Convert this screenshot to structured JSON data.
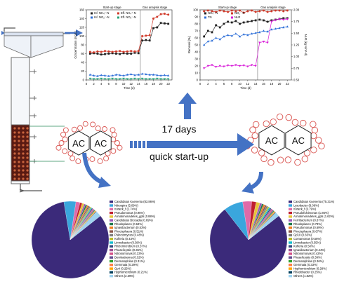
{
  "center": {
    "duration": "17 days",
    "caption": "quick start-up"
  },
  "ac_label": "AC",
  "colors": {
    "arrow": "#4472c4",
    "sludge": "#8b2d1f",
    "purple": "#3b2a7a",
    "pie_blue": "#3aa6dd",
    "bubble": "#d9534f"
  },
  "chart_left": {
    "type": "line",
    "stage_labels": [
      "Start-up stage",
      "Gas analysis stage"
    ],
    "ylabel": "Concentration (mg/L)",
    "xlabel": "Time (d)",
    "ylim": [
      0,
      160
    ],
    "yticks": [
      "0",
      "20",
      "40",
      "60",
      "80",
      "100",
      "120",
      "140",
      "160"
    ],
    "xticks": [
      "0",
      "2",
      "4",
      "6",
      "8",
      "10",
      "12",
      "14",
      "16",
      "18",
      "20",
      "22"
    ],
    "legend": [
      "Inf. NH₄⁺-N",
      "Eff. NH₄⁺-N",
      "Inf. NO₂⁻-N",
      "Eff. NO₂⁻-N"
    ],
    "series": [
      {
        "name": "Inf. NH₄⁺-N",
        "color": "#222222",
        "values": [
          [
            1,
            60
          ],
          [
            2,
            61
          ],
          [
            3,
            60
          ],
          [
            4,
            58
          ],
          [
            5,
            59
          ],
          [
            6,
            60
          ],
          [
            7,
            61
          ],
          [
            8,
            60
          ],
          [
            9,
            59
          ],
          [
            10,
            61
          ],
          [
            11,
            60
          ],
          [
            12,
            60
          ],
          [
            13,
            62
          ],
          [
            14,
            61
          ],
          [
            15,
            90
          ],
          [
            16,
            91
          ],
          [
            17,
            90
          ],
          [
            18,
            118
          ],
          [
            19,
            120
          ],
          [
            20,
            130
          ],
          [
            21,
            129
          ],
          [
            22,
            128
          ]
        ]
      },
      {
        "name": "Inf. NO₂⁻-N",
        "color": "#d03a2a",
        "values": [
          [
            1,
            64
          ],
          [
            2,
            63
          ],
          [
            3,
            65
          ],
          [
            4,
            64
          ],
          [
            5,
            66
          ],
          [
            6,
            65
          ],
          [
            7,
            64
          ],
          [
            8,
            65
          ],
          [
            9,
            66
          ],
          [
            10,
            64
          ],
          [
            11,
            65
          ],
          [
            12,
            66
          ],
          [
            13,
            65
          ],
          [
            14,
            66
          ],
          [
            15,
            100
          ],
          [
            16,
            101
          ],
          [
            17,
            102
          ],
          [
            18,
            140
          ],
          [
            19,
            144
          ],
          [
            20,
            150
          ],
          [
            21,
            151
          ],
          [
            22,
            149
          ]
        ]
      },
      {
        "name": "Eff. NH₄⁺-N",
        "color": "#2e6fd8",
        "values": [
          [
            1,
            12
          ],
          [
            2,
            10
          ],
          [
            3,
            9
          ],
          [
            4,
            11
          ],
          [
            5,
            10
          ],
          [
            6,
            9
          ],
          [
            7,
            10
          ],
          [
            8,
            12
          ],
          [
            9,
            11
          ],
          [
            10,
            10
          ],
          [
            11,
            12
          ],
          [
            12,
            13
          ],
          [
            13,
            11
          ],
          [
            14,
            12
          ],
          [
            15,
            14
          ],
          [
            16,
            13
          ],
          [
            17,
            12
          ],
          [
            18,
            12
          ],
          [
            19,
            11
          ],
          [
            20,
            10
          ],
          [
            21,
            11
          ],
          [
            22,
            10
          ]
        ]
      },
      {
        "name": "Eff. NO₂⁻-N",
        "color": "#2aa37a",
        "values": [
          [
            1,
            3
          ],
          [
            2,
            2
          ],
          [
            3,
            2
          ],
          [
            4,
            3
          ],
          [
            5,
            2
          ],
          [
            6,
            2
          ],
          [
            7,
            3
          ],
          [
            8,
            2
          ],
          [
            9,
            2
          ],
          [
            10,
            3
          ],
          [
            11,
            2
          ],
          [
            12,
            2
          ],
          [
            13,
            3
          ],
          [
            14,
            2
          ],
          [
            15,
            3
          ],
          [
            16,
            2
          ],
          [
            17,
            2
          ],
          [
            18,
            2
          ],
          [
            19,
            3
          ],
          [
            20,
            2
          ],
          [
            21,
            2
          ],
          [
            22,
            2
          ]
        ]
      }
    ]
  },
  "chart_right": {
    "type": "line",
    "stage_labels": [
      "Start-up stage",
      "Gas analysis stage"
    ],
    "ylabel": "Removal (%)",
    "y2label": "NLR (kg N/m³·d)",
    "xlabel": "Time (d)",
    "ylim": [
      0,
      100
    ],
    "y2lim": [
      0.5,
      2.0
    ],
    "yticks": [
      "0",
      "10",
      "20",
      "30",
      "40",
      "50",
      "60",
      "70",
      "80",
      "90",
      "100"
    ],
    "y2ticks": [
      "0.50",
      "0.75",
      "1.00",
      "1.25",
      "1.50",
      "1.75",
      "2.00"
    ],
    "xticks": [
      "0",
      "2",
      "4",
      "6",
      "8",
      "10",
      "12",
      "14",
      "16",
      "18",
      "20",
      "22"
    ],
    "legend": [
      "NH₄⁺-N",
      "NO₂⁻-N",
      "TN",
      "NLR"
    ],
    "series": [
      {
        "name": "NH₄⁺-N",
        "color": "#222222",
        "values": [
          [
            1,
            62
          ],
          [
            2,
            70
          ],
          [
            3,
            68
          ],
          [
            4,
            78
          ],
          [
            5,
            75
          ],
          [
            6,
            80
          ],
          [
            7,
            83
          ],
          [
            8,
            82
          ],
          [
            9,
            84
          ],
          [
            10,
            80
          ],
          [
            11,
            82
          ],
          [
            12,
            83
          ],
          [
            13,
            84
          ],
          [
            14,
            85
          ],
          [
            15,
            86
          ],
          [
            16,
            85
          ],
          [
            17,
            83
          ],
          [
            18,
            85
          ],
          [
            19,
            86
          ],
          [
            20,
            87
          ],
          [
            21,
            88
          ],
          [
            22,
            88
          ]
        ]
      },
      {
        "name": "NO₂⁻-N",
        "color": "#d03a2a",
        "values": [
          [
            1,
            98
          ],
          [
            2,
            99
          ],
          [
            3,
            98
          ],
          [
            4,
            97
          ],
          [
            5,
            99
          ],
          [
            6,
            98
          ],
          [
            7,
            97
          ],
          [
            8,
            99
          ],
          [
            9,
            98
          ],
          [
            10,
            99
          ],
          [
            11,
            96
          ],
          [
            12,
            98
          ],
          [
            13,
            99
          ],
          [
            14,
            97
          ],
          [
            15,
            98
          ],
          [
            16,
            99
          ],
          [
            17,
            97
          ],
          [
            18,
            98
          ],
          [
            19,
            99
          ],
          [
            20,
            99
          ],
          [
            21,
            98
          ],
          [
            22,
            99
          ]
        ]
      },
      {
        "name": "TN",
        "color": "#2e6fd8",
        "values": [
          [
            1,
            50
          ],
          [
            2,
            55
          ],
          [
            3,
            56
          ],
          [
            4,
            60
          ],
          [
            5,
            58
          ],
          [
            6,
            62
          ],
          [
            7,
            64
          ],
          [
            8,
            63
          ],
          [
            9,
            66
          ],
          [
            10,
            62
          ],
          [
            11,
            65
          ],
          [
            12,
            64
          ],
          [
            13,
            66
          ],
          [
            14,
            67
          ],
          [
            15,
            68
          ],
          [
            16,
            70
          ],
          [
            17,
            69
          ],
          [
            18,
            72
          ],
          [
            19,
            73
          ],
          [
            20,
            74
          ],
          [
            21,
            75
          ],
          [
            22,
            76
          ]
        ]
      },
      {
        "name": "NLR",
        "color": "#d81fd8",
        "values": [
          [
            1,
            0.75
          ],
          [
            2,
            0.8
          ],
          [
            3,
            0.82
          ],
          [
            4,
            0.78
          ],
          [
            5,
            0.8
          ],
          [
            6,
            0.79
          ],
          [
            7,
            0.81
          ],
          [
            8,
            0.8
          ],
          [
            9,
            0.82
          ],
          [
            10,
            0.8
          ],
          [
            11,
            0.81
          ],
          [
            12,
            0.79
          ],
          [
            13,
            0.82
          ],
          [
            14,
            0.8
          ],
          [
            15,
            1.3
          ],
          [
            16,
            1.32
          ],
          [
            17,
            1.3
          ],
          [
            18,
            1.75
          ],
          [
            19,
            1.78
          ],
          [
            20,
            1.8
          ],
          [
            21,
            1.79
          ],
          [
            22,
            1.8
          ]
        ]
      }
    ]
  },
  "pie_left": {
    "slices": [
      {
        "label": "Candidatus Kuenenia (83.86%)",
        "value": 83.86,
        "color": "#3b2a7a"
      },
      {
        "label": "Nitrospira (5.09%)",
        "value": 5.09,
        "color": "#3aa6dd"
      },
      {
        "label": "norank_f (1.74%)",
        "value": 1.74,
        "color": "#e06aa8"
      },
      {
        "label": "Pseudomonas (0.95%)",
        "value": 0.95,
        "color": "#c01f2f"
      },
      {
        "label": "Armatimonadetes_gp5 (0.88%)",
        "value": 0.88,
        "color": "#e7c43a"
      },
      {
        "label": "Candidatus Brocadia (0.69%)",
        "value": 0.69,
        "color": "#9b59b6"
      },
      {
        "label": "Rhodoplanes (0.64%)",
        "value": 0.64,
        "color": "#1f7a4d"
      },
      {
        "label": "Ignavibacterium (0.53%)",
        "value": 0.53,
        "color": "#f07d1f"
      },
      {
        "label": "Phycisphaera (0.51%)",
        "value": 0.51,
        "color": "#8c564b"
      },
      {
        "label": "Planctomyces (0.48%)",
        "value": 0.48,
        "color": "#7f7f7f"
      },
      {
        "label": "Kofleria (0.43%)",
        "value": 0.43,
        "color": "#bcbd22"
      },
      {
        "label": "Limnobacter (0.38%)",
        "value": 0.38,
        "color": "#17becf"
      },
      {
        "label": "Rhizomicrobium (0.37%)",
        "value": 0.37,
        "color": "#2f4b7c"
      },
      {
        "label": "Phaselicystis (0.35%)",
        "value": 0.35,
        "color": "#a05195"
      },
      {
        "label": "Nitrosomonas (0.33%)",
        "value": 0.33,
        "color": "#d45087"
      },
      {
        "label": "Denitratisoma (0.32%)",
        "value": 0.32,
        "color": "#665191"
      },
      {
        "label": "Dermatophilus (0.31%)",
        "value": 0.31,
        "color": "#2ca02c"
      },
      {
        "label": "Gemmata (0.29%)",
        "value": 0.29,
        "color": "#ff7c43"
      },
      {
        "label": "Gp4 (0.25%)",
        "value": 0.25,
        "color": "#ffa600"
      },
      {
        "label": "Hyphomicrobium (0.21%)",
        "value": 0.21,
        "color": "#003f5c"
      },
      {
        "label": "Others (2.39%)",
        "value": 2.39,
        "color": "#9fd3f0"
      }
    ]
  },
  "pie_right": {
    "slices": [
      {
        "label": "Candidatus Kuenenia (75.31%)",
        "value": 75.31,
        "color": "#3b2a7a"
      },
      {
        "label": "Lysobacter (8.09%)",
        "value": 8.09,
        "color": "#3aa6dd"
      },
      {
        "label": "norank_f (3.79%)",
        "value": 3.79,
        "color": "#e06aa8"
      },
      {
        "label": "Pseudofulvimonas (1.86%)",
        "value": 1.86,
        "color": "#c01f2f"
      },
      {
        "label": "Armatimonadetes_gp5 (1.62%)",
        "value": 1.62,
        "color": "#e7c43a"
      },
      {
        "label": "Ferribacterium (0.87%)",
        "value": 0.87,
        "color": "#9b59b6"
      },
      {
        "label": "Rhodoplanes (0.73%)",
        "value": 0.73,
        "color": "#1f7a4d"
      },
      {
        "label": "Pseudomonas (0.69%)",
        "value": 0.69,
        "color": "#f07d1f"
      },
      {
        "label": "Phycisphaera (0.67%)",
        "value": 0.67,
        "color": "#8c564b"
      },
      {
        "label": "Gp10 (0.65%)",
        "value": 0.65,
        "color": "#7f7f7f"
      },
      {
        "label": "Comamonas (0.58%)",
        "value": 0.58,
        "color": "#bcbd22"
      },
      {
        "label": "Limnobacter (0.55%)",
        "value": 0.55,
        "color": "#17becf"
      },
      {
        "label": "Kofleria (0.50%)",
        "value": 0.5,
        "color": "#2f4b7c"
      },
      {
        "label": "Ignavibacterium (0.44%)",
        "value": 0.44,
        "color": "#a05195"
      },
      {
        "label": "Nitrosomonas (0.42%)",
        "value": 0.42,
        "color": "#d45087"
      },
      {
        "label": "Phaselicystis (0.39%)",
        "value": 0.39,
        "color": "#665191"
      },
      {
        "label": "Dermatophilus (0.36%)",
        "value": 0.36,
        "color": "#2ca02c"
      },
      {
        "label": "Gemmata (0.33%)",
        "value": 0.33,
        "color": "#ff7c43"
      },
      {
        "label": "Hyphomicrobium (0.28%)",
        "value": 0.28,
        "color": "#ffa600"
      },
      {
        "label": "Rhodobacter (0.25%)",
        "value": 0.25,
        "color": "#003f5c"
      },
      {
        "label": "Others (1.82%)",
        "value": 1.82,
        "color": "#9fd3f0"
      }
    ]
  }
}
